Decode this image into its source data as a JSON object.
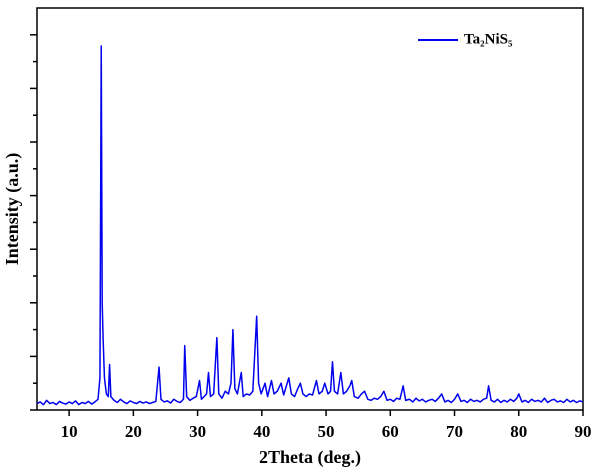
{
  "chart_data": {
    "type": "line",
    "x_label": "2Theta (deg.)",
    "y_label": "Intensity (a.u.)",
    "x": [
      5,
      5.5,
      6,
      6.5,
      7,
      7.5,
      8,
      8.5,
      9,
      9.5,
      10,
      10.5,
      11,
      11.5,
      12,
      12.5,
      13,
      13.5,
      14,
      14.5,
      14.8,
      15,
      15.15,
      15.3,
      15.5,
      15.8,
      16.1,
      16.3,
      16.5,
      17,
      17.5,
      18,
      18.5,
      19,
      19.5,
      20,
      20.5,
      21,
      21.5,
      22,
      22.5,
      23,
      23.5,
      24,
      24.3,
      24.8,
      25.3,
      25.8,
      26.3,
      26.8,
      27.3,
      27.8,
      28,
      28.3,
      28.8,
      29.3,
      29.8,
      30.3,
      30.6,
      31,
      31.4,
      31.7,
      32,
      32.5,
      33,
      33.3,
      33.8,
      34.3,
      34.8,
      35.2,
      35.5,
      35.8,
      36.2,
      36.8,
      37.1,
      37.6,
      38.1,
      38.6,
      39.2,
      39.5,
      39.9,
      40.5,
      40.9,
      41.5,
      41.9,
      42.4,
      43,
      43.4,
      44.2,
      44.6,
      45.1,
      45.6,
      46,
      46.4,
      46.9,
      47.4,
      47.9,
      48.5,
      48.9,
      49.4,
      49.8,
      50.3,
      50.7,
      51,
      51.3,
      51.8,
      52.3,
      52.7,
      53.2,
      53.7,
      54,
      54.4,
      55,
      55.5,
      56,
      56.5,
      57,
      57.5,
      58,
      58.5,
      59,
      59.5,
      60,
      60.5,
      61,
      61.5,
      62,
      62.4,
      63,
      63.5,
      64,
      64.5,
      65,
      65.5,
      66,
      66.5,
      67,
      67.5,
      68,
      68.5,
      69,
      69.5,
      70,
      70.5,
      71,
      71.5,
      72,
      72.5,
      73,
      73.5,
      74,
      74.5,
      75,
      75.3,
      75.7,
      76.2,
      76.7,
      77.2,
      77.7,
      78.2,
      78.7,
      79.2,
      79.7,
      80,
      80.5,
      81,
      81.5,
      82,
      82.5,
      83,
      83.5,
      84,
      84.5,
      85,
      85.5,
      86,
      86.5,
      87,
      87.5,
      88,
      88.5,
      89,
      89.5,
      90
    ],
    "series": [
      {
        "name": "Ta₂NiS₅",
        "color": "#0000ee",
        "values": [
          0.12,
          0.15,
          0.1,
          0.18,
          0.12,
          0.14,
          0.1,
          0.16,
          0.13,
          0.11,
          0.15,
          0.12,
          0.17,
          0.1,
          0.14,
          0.12,
          0.16,
          0.11,
          0.15,
          0.2,
          0.6,
          6.79,
          2.0,
          1.3,
          0.6,
          0.3,
          0.25,
          0.85,
          0.25,
          0.18,
          0.14,
          0.2,
          0.15,
          0.12,
          0.17,
          0.14,
          0.12,
          0.16,
          0.13,
          0.15,
          0.12,
          0.14,
          0.16,
          0.8,
          0.2,
          0.15,
          0.17,
          0.13,
          0.2,
          0.16,
          0.14,
          0.2,
          1.2,
          0.25,
          0.18,
          0.22,
          0.25,
          0.55,
          0.2,
          0.25,
          0.3,
          0.7,
          0.25,
          0.3,
          1.35,
          0.3,
          0.22,
          0.35,
          0.3,
          0.5,
          1.5,
          0.4,
          0.3,
          0.7,
          0.25,
          0.3,
          0.28,
          0.35,
          1.75,
          0.5,
          0.3,
          0.5,
          0.25,
          0.55,
          0.3,
          0.35,
          0.5,
          0.28,
          0.6,
          0.3,
          0.25,
          0.4,
          0.5,
          0.3,
          0.25,
          0.3,
          0.28,
          0.55,
          0.3,
          0.35,
          0.5,
          0.3,
          0.35,
          0.9,
          0.35,
          0.3,
          0.7,
          0.3,
          0.35,
          0.45,
          0.55,
          0.25,
          0.22,
          0.3,
          0.35,
          0.2,
          0.18,
          0.22,
          0.2,
          0.25,
          0.35,
          0.18,
          0.2,
          0.16,
          0.22,
          0.2,
          0.45,
          0.18,
          0.2,
          0.15,
          0.22,
          0.17,
          0.2,
          0.15,
          0.18,
          0.2,
          0.16,
          0.22,
          0.3,
          0.15,
          0.18,
          0.14,
          0.2,
          0.3,
          0.16,
          0.18,
          0.14,
          0.2,
          0.16,
          0.18,
          0.15,
          0.2,
          0.22,
          0.45,
          0.18,
          0.15,
          0.2,
          0.14,
          0.18,
          0.15,
          0.2,
          0.16,
          0.22,
          0.3,
          0.15,
          0.18,
          0.14,
          0.2,
          0.16,
          0.18,
          0.15,
          0.22,
          0.14,
          0.18,
          0.2,
          0.15,
          0.17,
          0.14,
          0.2,
          0.15,
          0.18,
          0.14,
          0.17,
          0.15
        ]
      }
    ],
    "xlim": [
      5,
      90
    ],
    "xticks": [
      10,
      20,
      30,
      40,
      50,
      60,
      70,
      80,
      90
    ],
    "ylim": [
      0,
      7.5
    ],
    "yticks": [
      0,
      0.5,
      1,
      1.5,
      2,
      2.5,
      3,
      3.5,
      4,
      4.5,
      5,
      5.5,
      6,
      6.5,
      7
    ],
    "ytick_labels": false,
    "grid": false,
    "legend": "top-right"
  }
}
